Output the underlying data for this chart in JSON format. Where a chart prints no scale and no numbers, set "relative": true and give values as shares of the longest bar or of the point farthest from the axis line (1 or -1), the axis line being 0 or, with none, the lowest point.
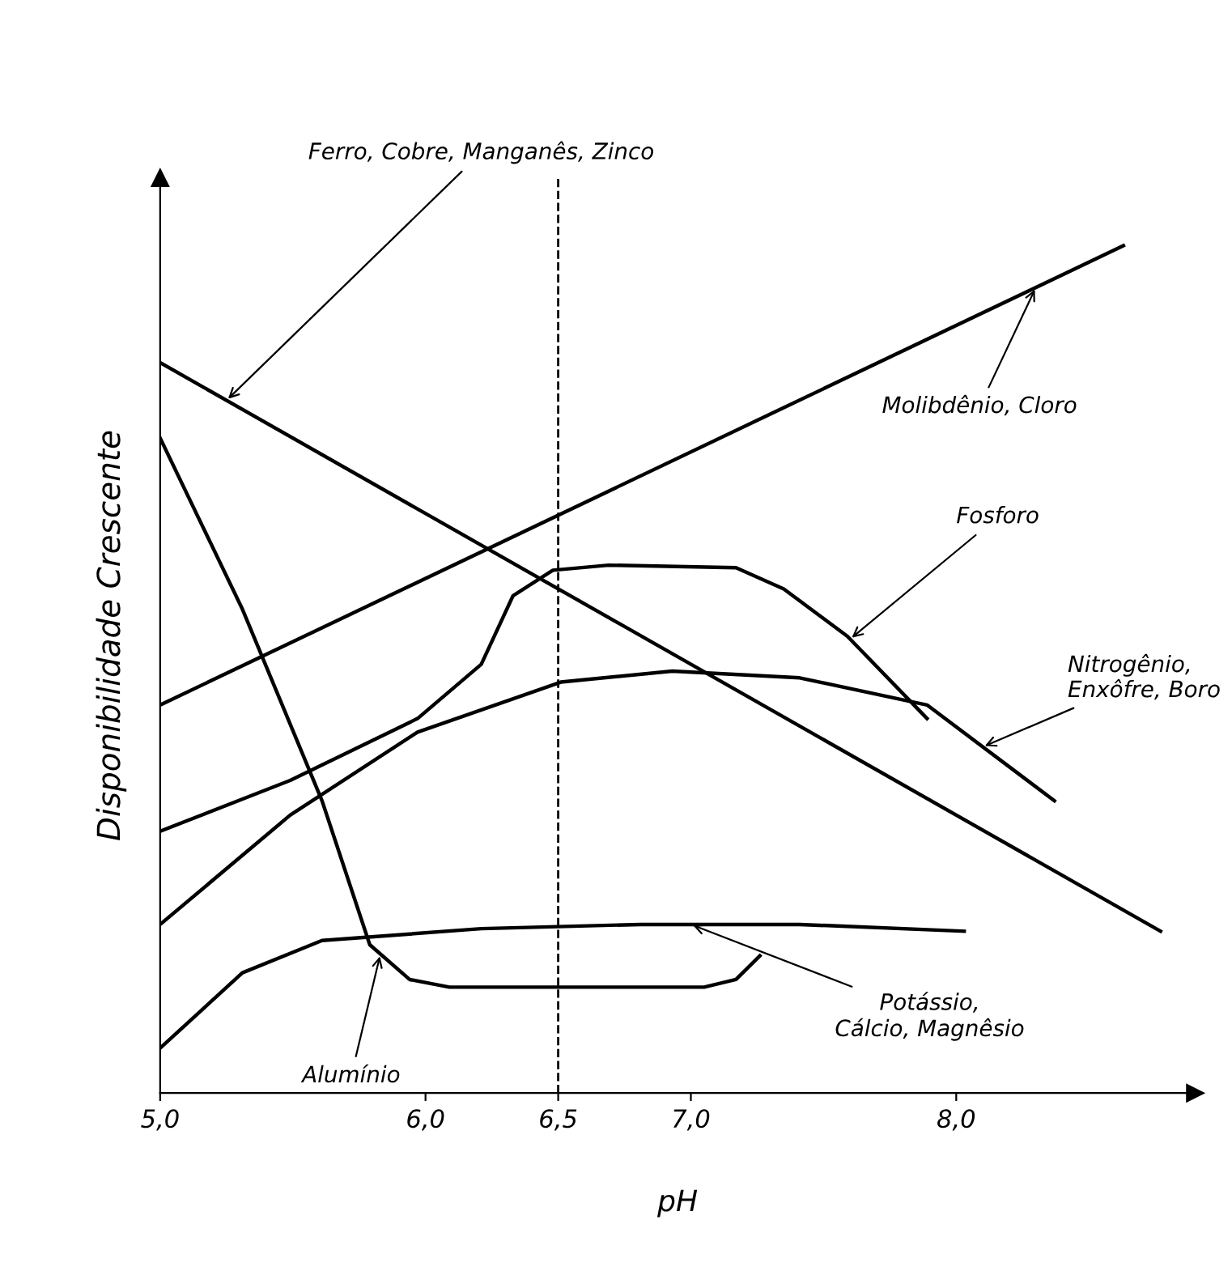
{
  "chart_data": {
    "type": "line",
    "relative": true,
    "xlabel": "pH",
    "ylabel": "Disponibilidade Crescente",
    "xlim": [
      5.0,
      8.9
    ],
    "xticks": [
      {
        "value": 5.0,
        "label": "5,0"
      },
      {
        "value": 6.0,
        "label": "6,0"
      },
      {
        "value": 6.5,
        "label": "6,5"
      },
      {
        "value": 7.0,
        "label": "7,0"
      },
      {
        "value": 8.0,
        "label": "8,0"
      }
    ],
    "tick_labels": "x",
    "grid": false,
    "legend": false,
    "marker": "none",
    "line_style": "solid",
    "ref_lines": [
      {
        "axis": "x",
        "value": 6.5,
        "label": null,
        "color": "#000000",
        "line_style": "dashed"
      }
    ],
    "series": [
      {
        "name": "Ferro, Cobre, Manganês, Zinco",
        "color": "#000000",
        "x": [
          5.0,
          8.77
        ],
        "values": [
          0.862,
          0.191
        ]
      },
      {
        "name": "Molibdênio, Cloro",
        "color": "#000000",
        "x": [
          5.0,
          8.63
        ],
        "values": [
          0.458,
          1.0
        ]
      },
      {
        "name": "Fosforo",
        "color": "#000000",
        "x": [
          5.0,
          5.49,
          5.97,
          6.21,
          6.33,
          6.48,
          6.69,
          7.17,
          7.35,
          7.59,
          7.89
        ],
        "values": [
          0.309,
          0.369,
          0.442,
          0.506,
          0.587,
          0.617,
          0.623,
          0.62,
          0.595,
          0.539,
          0.442
        ]
      },
      {
        "name": "Nitrogênio, Enxôfre, Boro",
        "color": "#000000",
        "x": [
          5.0,
          5.49,
          5.97,
          6.51,
          6.93,
          7.41,
          7.89,
          8.37
        ],
        "values": [
          0.199,
          0.328,
          0.426,
          0.485,
          0.498,
          0.49,
          0.458,
          0.345
        ]
      },
      {
        "name": "Potássio, Cálcio, Magnêsio",
        "color": "#000000",
        "x": [
          5.0,
          5.31,
          5.61,
          6.21,
          6.81,
          7.41,
          8.03
        ],
        "values": [
          0.053,
          0.142,
          0.18,
          0.194,
          0.199,
          0.199,
          0.191
        ]
      },
      {
        "name": "Alumínio",
        "color": "#000000",
        "x": [
          5.0,
          5.31,
          5.61,
          5.79,
          5.94,
          6.09,
          6.51,
          7.05,
          7.17,
          7.26
        ],
        "values": [
          0.773,
          0.571,
          0.345,
          0.175,
          0.134,
          0.125,
          0.125,
          0.125,
          0.134,
          0.162
        ]
      }
    ]
  }
}
